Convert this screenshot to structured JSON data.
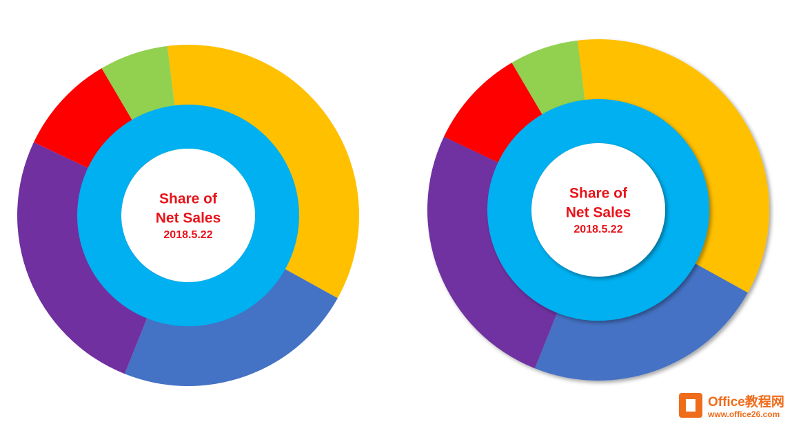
{
  "chart_data": [
    {
      "type": "donut",
      "title_lines": [
        "Share of",
        "Net Sales"
      ],
      "subtitle": "2018.5.22",
      "outer": {
        "values": [
          35,
          23,
          26,
          9.5,
          6.5
        ],
        "colors": [
          "#ffc000",
          "#4472c4",
          "#7030a0",
          "#ff0000",
          "#92d050"
        ]
      },
      "inner": {
        "values": [
          100
        ],
        "colors": [
          "#00b0f0"
        ]
      },
      "shadow": false
    },
    {
      "type": "donut",
      "title_lines": [
        "Share of",
        "Net Sales"
      ],
      "subtitle": "2018.5.22",
      "outer": {
        "values": [
          35,
          23,
          26,
          9.5,
          6.5
        ],
        "colors": [
          "#ffc000",
          "#4472c4",
          "#7030a0",
          "#ff0000",
          "#92d050"
        ]
      },
      "inner": {
        "values": [
          100
        ],
        "colors": [
          "#00b0f0"
        ]
      },
      "shadow": true
    }
  ],
  "watermark": {
    "name": "Office教程网",
    "url": "www.office26.com"
  }
}
